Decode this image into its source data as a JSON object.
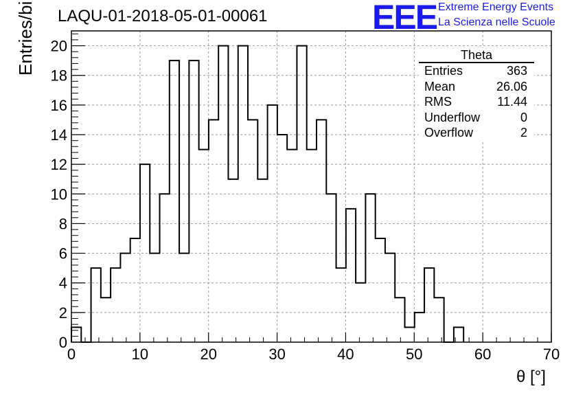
{
  "title": "LAQU-01-2018-05-01-00061",
  "logo": {
    "mark": "EEE",
    "line1": "Extreme Energy Events",
    "line2": "La Scienza nelle Scuole"
  },
  "stats_box": {
    "title": "Theta",
    "rows": [
      {
        "label": "Entries",
        "value": "363"
      },
      {
        "label": "Mean",
        "value": "26.06"
      },
      {
        "label": "RMS",
        "value": "11.44"
      },
      {
        "label": "Underflow",
        "value": "0"
      },
      {
        "label": "Overflow",
        "value": "2"
      }
    ]
  },
  "chart_data": {
    "type": "bar",
    "style": "step-histogram",
    "title": "LAQU-01-2018-05-01-00061",
    "xlabel": "θ [°]",
    "ylabel": "Entries/bin",
    "xlim": [
      0,
      70
    ],
    "ylim": [
      0,
      21
    ],
    "grid": true,
    "bin_width": 1.43,
    "bin_edges_start": 0,
    "values": [
      1,
      0,
      5,
      3,
      5,
      6,
      7,
      12,
      6,
      10,
      19,
      6,
      19,
      13,
      15,
      20,
      11,
      20,
      15,
      11,
      16,
      14,
      13,
      20,
      13,
      15,
      10,
      5,
      9,
      4,
      10,
      7,
      6,
      3,
      1,
      2,
      5,
      3,
      0,
      1
    ],
    "xticks": [
      "0",
      "10",
      "20",
      "30",
      "40",
      "50",
      "60",
      "70"
    ],
    "yticks": [
      "0",
      "2",
      "4",
      "6",
      "8",
      "10",
      "12",
      "14",
      "16",
      "18",
      "20"
    ]
  }
}
